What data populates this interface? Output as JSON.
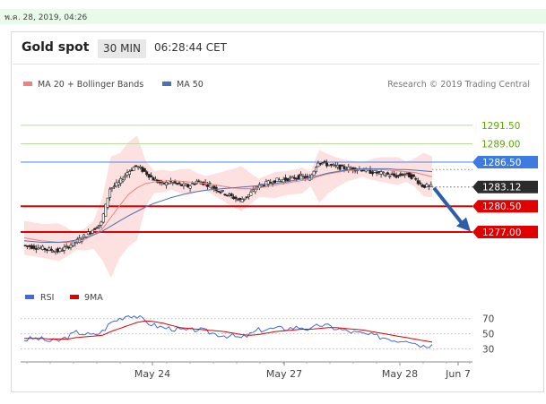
{
  "timestamp": "พ.ค. 28, 2019, 04:26",
  "header": {
    "symbol": "Gold spot",
    "timeframe": "30 MIN",
    "clock": "06:28:44 CET"
  },
  "legend": {
    "ma20_label": "MA 20 + Bollinger Bands",
    "ma50_label": "MA 50",
    "ma20_color": "#f08080",
    "ma50_color": "#4a72b8",
    "credit": "Research © 2019 Trading Central"
  },
  "rsi_legend": {
    "rsi_label": "RSI",
    "ma_label": "9MA",
    "rsi_color": "#4169e1",
    "ma_color": "#e00000"
  },
  "chart_data": [
    {
      "type": "candlestick",
      "x_ticks": [
        "May 24",
        "May 27",
        "May 28",
        "Jun 7"
      ],
      "ylim": [
        1272,
        1296
      ],
      "levels": [
        {
          "value": 1291.5,
          "label": "1291.50",
          "style": "resistance-green",
          "color": "#5aaa00"
        },
        {
          "value": 1289.0,
          "label": "1289.00",
          "style": "resistance-green",
          "color": "#5aaa00"
        },
        {
          "value": 1286.5,
          "label": "1286.50",
          "style": "pivot",
          "color": "#4a86e8"
        },
        {
          "value": 1283.12,
          "label": "1283.12",
          "style": "last-price",
          "color": "#333333"
        },
        {
          "value": 1280.5,
          "label": "1280.50",
          "style": "support",
          "color": "#e00000"
        },
        {
          "value": 1277.0,
          "label": "1277.00",
          "style": "support",
          "color": "#e00000"
        }
      ],
      "close_path": [
        1275.2,
        1275.0,
        1274.8,
        1274.6,
        1274.4,
        1274.9,
        1275.6,
        1276.4,
        1277.3,
        1278.2,
        1282.9,
        1283.6,
        1285.1,
        1286.0,
        1285.2,
        1284.2,
        1283.5,
        1283.8,
        1283.4,
        1283.2,
        1283.9,
        1283.6,
        1283.0,
        1282.4,
        1281.8,
        1281.3,
        1282.0,
        1283.2,
        1283.6,
        1284.0,
        1284.1,
        1284.3,
        1284.6,
        1284.2,
        1286.6,
        1286.2,
        1285.9,
        1285.7,
        1285.6,
        1285.5,
        1285.2,
        1285.0,
        1284.8,
        1284.6,
        1284.9,
        1284.4,
        1283.3,
        1283.12
      ],
      "ma20": [
        1276.2,
        1276.0,
        1275.8,
        1275.7,
        1275.6,
        1275.6,
        1275.7,
        1276.0,
        1276.6,
        1277.4,
        1279.0,
        1280.6,
        1282.1,
        1283.0,
        1283.6,
        1283.8,
        1283.9,
        1284.0,
        1283.9,
        1283.8,
        1283.7,
        1283.6,
        1283.4,
        1283.2,
        1283.0,
        1282.9,
        1282.9,
        1283.0,
        1283.2,
        1283.4,
        1283.6,
        1283.8,
        1284.0,
        1284.2,
        1284.6,
        1284.9,
        1285.1,
        1285.3,
        1285.4,
        1285.5,
        1285.5,
        1285.5,
        1285.4,
        1285.3,
        1285.2,
        1285.1,
        1284.8,
        1284.5
      ],
      "ma50": [
        1275.8,
        1275.7,
        1275.6,
        1275.6,
        1275.6,
        1275.7,
        1275.9,
        1276.2,
        1276.6,
        1277.1,
        1277.8,
        1278.5,
        1279.2,
        1279.8,
        1280.4,
        1280.9,
        1281.3,
        1281.7,
        1282.0,
        1282.3,
        1282.5,
        1282.7,
        1282.8,
        1282.9,
        1283.0,
        1283.1,
        1283.2,
        1283.3,
        1283.5,
        1283.6,
        1283.8,
        1284.0,
        1284.2,
        1284.4,
        1284.7,
        1285.0,
        1285.2,
        1285.4,
        1285.5,
        1285.6,
        1285.6,
        1285.6,
        1285.6,
        1285.5,
        1285.5,
        1285.4,
        1285.3,
        1285.2
      ]
    },
    {
      "type": "line",
      "panel": "RSI",
      "ylim": [
        20,
        85
      ],
      "ref_levels": [
        {
          "value": 70,
          "label": "70"
        },
        {
          "value": 50,
          "label": "50"
        },
        {
          "value": 30,
          "label": "30"
        }
      ],
      "series": [
        {
          "name": "RSI",
          "values": [
            42,
            44,
            43,
            40,
            41,
            46,
            52,
            50,
            48,
            53,
            65,
            70,
            75,
            73,
            66,
            61,
            58,
            57,
            55,
            54,
            56,
            53,
            50,
            48,
            47,
            44,
            49,
            55,
            56,
            57,
            57,
            58,
            59,
            55,
            62,
            60,
            57,
            54,
            52,
            50,
            48,
            46,
            44,
            41,
            43,
            38,
            34,
            36
          ]
        },
        {
          "name": "9MA",
          "values": [
            44,
            44,
            44,
            43,
            43,
            43,
            45,
            46,
            47,
            48,
            53,
            57,
            61,
            65,
            67,
            66,
            64,
            61,
            58,
            57,
            56,
            55,
            54,
            53,
            51,
            49,
            48,
            49,
            51,
            53,
            54,
            55,
            56,
            56,
            57,
            58,
            58,
            57,
            56,
            55,
            53,
            51,
            49,
            47,
            45,
            43,
            41,
            39
          ]
        }
      ]
    }
  ]
}
